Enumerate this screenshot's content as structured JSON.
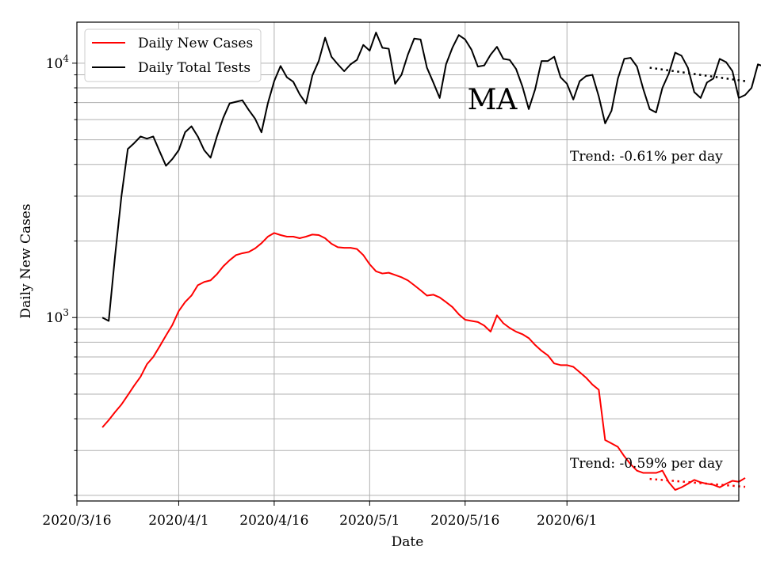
{
  "chart_data": {
    "type": "line",
    "title": "MA",
    "xlabel": "Date",
    "ylabel": "Daily New Cases",
    "yscale": "log",
    "ylim": [
      190,
      14500
    ],
    "xlim": [
      "2020-03-16",
      "2020-06-28"
    ],
    "x_ticks": [
      "2020/3/16",
      "2020/4/1",
      "2020/4/16",
      "2020/5/1",
      "2020/5/16",
      "2020/6/1"
    ],
    "y_tick_labels": [
      {
        "value": 1000,
        "base": "10",
        "exp": "3"
      },
      {
        "value": 10000,
        "base": "10",
        "exp": "4"
      }
    ],
    "grid": true,
    "legend_position": "upper-left",
    "start_date": "2020-03-20",
    "series": [
      {
        "name": "Daily New Cases",
        "color": "#ff0000",
        "values": [
          370,
          395,
          425,
          455,
          495,
          540,
          585,
          655,
          700,
          770,
          850,
          935,
          1060,
          1150,
          1220,
          1340,
          1380,
          1400,
          1480,
          1590,
          1680,
          1760,
          1790,
          1810,
          1870,
          1960,
          2080,
          2150,
          2110,
          2080,
          2080,
          2050,
          2080,
          2120,
          2110,
          2050,
          1950,
          1890,
          1880,
          1880,
          1860,
          1760,
          1620,
          1520,
          1490,
          1500,
          1470,
          1440,
          1400,
          1340,
          1280,
          1220,
          1230,
          1200,
          1150,
          1100,
          1030,
          980,
          970,
          960,
          930,
          880,
          1020,
          950,
          910,
          880,
          860,
          830,
          780,
          740,
          710,
          660,
          650,
          650,
          640,
          610,
          580,
          545,
          520,
          330,
          320,
          310,
          285,
          265,
          250,
          245,
          245,
          245,
          250,
          225,
          210,
          215,
          222,
          230,
          225,
          222,
          220,
          215,
          222,
          228,
          226,
          234
        ]
      },
      {
        "name": "Daily Total Tests",
        "color": "#000000",
        "values": [
          1000,
          970,
          1750,
          3000,
          4600,
          4850,
          5150,
          5050,
          5150,
          4500,
          3950,
          4200,
          4550,
          5350,
          5650,
          5150,
          4550,
          4250,
          5150,
          6100,
          6950,
          7050,
          7150,
          6550,
          6050,
          5350,
          6950,
          8500,
          9750,
          8800,
          8450,
          7550,
          6950,
          8950,
          10200,
          12600,
          10600,
          9900,
          9300,
          9900,
          10300,
          11800,
          11200,
          13200,
          11500,
          11400,
          8300,
          9000,
          10800,
          12500,
          12400,
          9600,
          8400,
          7300,
          9900,
          11500,
          12900,
          12400,
          11300,
          9700,
          9800,
          10800,
          11600,
          10400,
          10300,
          9500,
          8100,
          6600,
          7900,
          10200,
          10200,
          10600,
          8800,
          8300,
          7200,
          8500,
          8900,
          9000,
          7400,
          5800,
          6500,
          8700,
          10400,
          10500,
          9700,
          7900,
          6600,
          6400,
          8000,
          9100,
          11000,
          10700,
          9600,
          7700,
          7300,
          8400,
          8700,
          10400,
          10100,
          9300,
          7300,
          7500,
          8000,
          9900,
          9700
        ]
      }
    ],
    "trends": [
      {
        "series": "Daily Total Tests",
        "label": "Trend: -0.61% per day",
        "color": "#000000",
        "start_value": 9600,
        "end_value": 8500
      },
      {
        "series": "Daily New Cases",
        "label": "Trend: -0.59% per day",
        "color": "#ff0000",
        "start_value": 232,
        "end_value": 216
      }
    ]
  }
}
